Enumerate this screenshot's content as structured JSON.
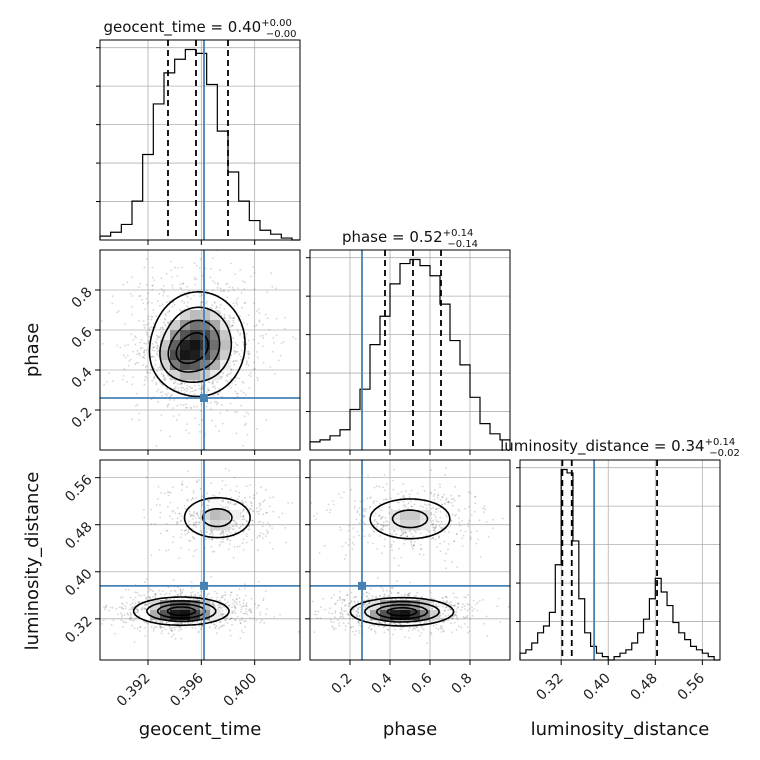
{
  "chart_data": {
    "type": "corner",
    "parameters": [
      "geocent_time",
      "phase",
      "luminosity_distance"
    ],
    "truth": {
      "geocent_time": 0.3962,
      "phase": 0.26,
      "luminosity_distance": 0.376
    },
    "titles": [
      {
        "param": "geocent_time",
        "text": "geocent_time = 0.40",
        "sup": "+0.00",
        "sub": "−0.00"
      },
      {
        "param": "phase",
        "text": "phase = 0.52",
        "sup": "+0.14",
        "sub": "−0.14"
      },
      {
        "param": "luminosity_distance",
        "text": "luminosity_distance = 0.34",
        "sup": "+0.14",
        "sub": "−0.02"
      }
    ],
    "axes": {
      "geocent_time": {
        "range": [
          0.3884,
          0.4034
        ],
        "ticks": [
          0.392,
          0.396,
          0.4
        ],
        "tick_labels": [
          "0.392",
          "0.396",
          "0.400"
        ],
        "label": "geocent_time"
      },
      "phase": {
        "range": [
          0.0,
          1.0
        ],
        "ticks": [
          0.2,
          0.4,
          0.6,
          0.8
        ],
        "tick_labels": [
          "0.2",
          "0.4",
          "0.6",
          "0.8"
        ],
        "label": "phase"
      },
      "luminosity_distance": {
        "range": [
          0.25,
          0.59
        ],
        "ticks": [
          0.32,
          0.4,
          0.48,
          0.56
        ],
        "tick_labels": [
          "0.32",
          "0.40",
          "0.48",
          "0.56"
        ],
        "label": "luminosity_distance"
      }
    },
    "histograms": {
      "geocent_time": {
        "edges": [
          0.3884,
          0.3892,
          0.39,
          0.3908,
          0.3916,
          0.3924,
          0.3932,
          0.394,
          0.3948,
          0.3956,
          0.3964,
          0.3972,
          0.398,
          0.3988,
          0.3996,
          0.4004,
          0.4012,
          0.402,
          0.4028,
          0.4034
        ],
        "counts": [
          2,
          4,
          8,
          20,
          44,
          70,
          86,
          93,
          98,
          96,
          80,
          56,
          35,
          20,
          10,
          5,
          3,
          1,
          0
        ],
        "quantiles": [
          0.3935,
          0.3956,
          0.398
        ]
      },
      "phase": {
        "edges": [
          0.0,
          0.05,
          0.1,
          0.15,
          0.2,
          0.25,
          0.3,
          0.35,
          0.4,
          0.45,
          0.5,
          0.55,
          0.6,
          0.65,
          0.7,
          0.75,
          0.8,
          0.85,
          0.9,
          0.95,
          1.0
        ],
        "counts": [
          4,
          5,
          7,
          10,
          20,
          30,
          52,
          66,
          82,
          92,
          94,
          91,
          86,
          72,
          54,
          42,
          26,
          13,
          8,
          5
        ],
        "quantiles": [
          0.375,
          0.515,
          0.655
        ]
      },
      "luminosity_distance": {
        "edges": [
          0.25,
          0.26,
          0.27,
          0.28,
          0.29,
          0.3,
          0.31,
          0.32,
          0.33,
          0.34,
          0.35,
          0.36,
          0.37,
          0.38,
          0.39,
          0.4,
          0.41,
          0.42,
          0.43,
          0.44,
          0.45,
          0.46,
          0.47,
          0.48,
          0.49,
          0.5,
          0.51,
          0.52,
          0.53,
          0.54,
          0.55,
          0.56,
          0.57,
          0.58,
          0.59
        ],
        "counts": [
          2,
          3,
          5,
          8,
          10,
          14,
          28,
          56,
          55,
          35,
          18,
          8,
          4,
          2,
          1,
          0,
          1,
          2,
          3,
          5,
          8,
          12,
          18,
          24,
          20,
          16,
          11,
          8,
          6,
          4,
          3,
          2,
          1,
          0
        ],
        "quantiles": [
          0.322,
          0.338,
          0.483
        ]
      }
    },
    "density_2d": [
      {
        "x": "geocent_time",
        "y": "phase",
        "blobs": [
          {
            "cx": 0.3958,
            "cy": 0.53,
            "sx": 0.0018,
            "sy": 0.135,
            "w": 1.0
          },
          {
            "cx": 0.3942,
            "cy": 0.46,
            "sx": 0.001,
            "sy": 0.07,
            "w": 0.35
          }
        ]
      },
      {
        "x": "geocent_time",
        "y": "luminosity_distance",
        "blobs": [
          {
            "cx": 0.3945,
            "cy": 0.333,
            "sx": 0.0018,
            "sy": 0.012,
            "w": 1.0
          },
          {
            "cx": 0.3972,
            "cy": 0.492,
            "sx": 0.0016,
            "sy": 0.022,
            "w": 0.45
          }
        ]
      },
      {
        "x": "phase",
        "y": "luminosity_distance",
        "blobs": [
          {
            "cx": 0.46,
            "cy": 0.332,
            "sx": 0.13,
            "sy": 0.012,
            "w": 1.0
          },
          {
            "cx": 0.5,
            "cy": 0.49,
            "sx": 0.13,
            "sy": 0.022,
            "w": 0.45
          }
        ]
      }
    ],
    "colors": {
      "truth": "#4682b4",
      "hist": "#000000",
      "grid": "#b0b0b0",
      "quantile": "#000000"
    },
    "grid": true
  }
}
